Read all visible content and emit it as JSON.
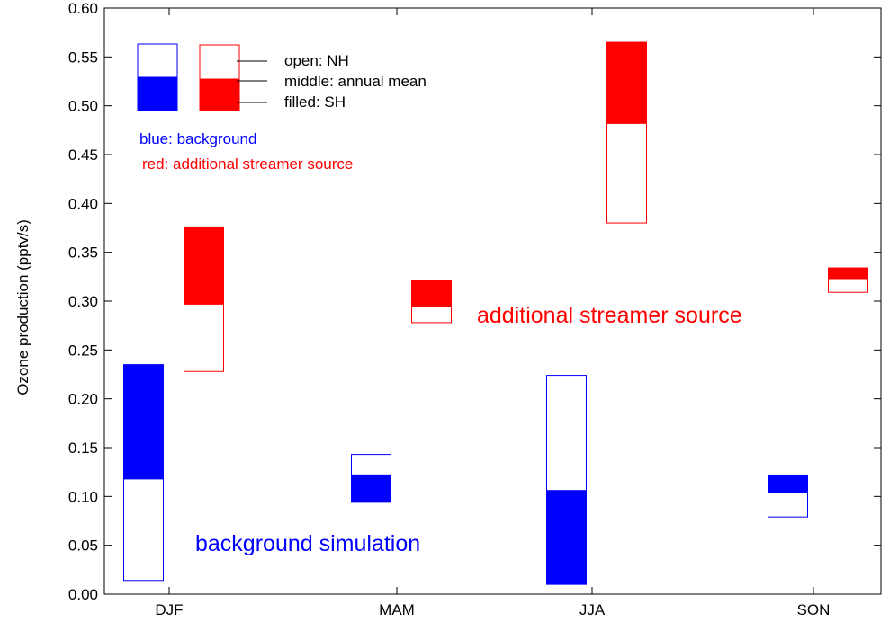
{
  "chart_data": {
    "type": "bar",
    "subtype": "floating-box",
    "categories": [
      "DJF",
      "MAM",
      "JJA",
      "SON"
    ],
    "ylabel": "Ozone production (pptv/s)",
    "xlabel": "",
    "ylim": [
      0,
      0.6
    ],
    "yticks": [
      "0.00",
      "0.05",
      "0.10",
      "0.15",
      "0.20",
      "0.25",
      "0.30",
      "0.35",
      "0.40",
      "0.45",
      "0.50",
      "0.55",
      "0.60"
    ],
    "grid": false,
    "series": [
      {
        "key": "background",
        "color": "#0000ff",
        "boxes": [
          {
            "category": "DJF",
            "nh": 0.014,
            "mean": 0.118,
            "sh": 0.235
          },
          {
            "category": "MAM",
            "nh": 0.143,
            "mean": 0.122,
            "sh": 0.094
          },
          {
            "category": "JJA",
            "nh": 0.224,
            "mean": 0.106,
            "sh": 0.01
          },
          {
            "category": "SON",
            "nh": 0.079,
            "mean": 0.104,
            "sh": 0.122
          }
        ]
      },
      {
        "key": "streamer",
        "color": "#ff0000",
        "boxes": [
          {
            "category": "DJF",
            "nh": 0.228,
            "mean": 0.297,
            "sh": 0.376
          },
          {
            "category": "MAM",
            "nh": 0.278,
            "mean": 0.295,
            "sh": 0.321
          },
          {
            "category": "JJA",
            "nh": 0.38,
            "mean": 0.482,
            "sh": 0.565
          },
          {
            "category": "SON",
            "nh": 0.309,
            "mean": 0.323,
            "sh": 0.334
          }
        ]
      }
    ],
    "legend": {
      "position": "top-left",
      "open_label": "open: NH",
      "middle_label": "middle: annual mean",
      "filled_label": "filled: SH",
      "blue_label": "blue: background",
      "red_label": "red: additional streamer source"
    },
    "annotations": {
      "streamer": "additional streamer source",
      "background": "background simulation"
    }
  }
}
